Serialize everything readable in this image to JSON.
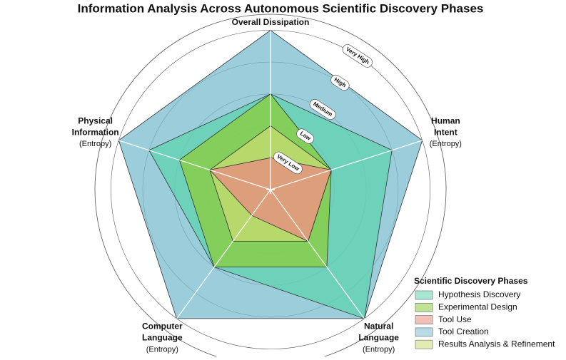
{
  "chart_data": {
    "type": "radar",
    "title": "Information Analysis Across Autonomous Scientific Discovery Phases",
    "categories": [
      "Overall Dissipation",
      "Human Intent",
      "Natural Language",
      "Computer Language",
      "Physical Information"
    ],
    "category_subtitles": [
      null,
      "(Entropy)",
      "(Entropy)",
      "(Entropy)",
      "(Entropy)"
    ],
    "ylim": [
      0,
      5.5
    ],
    "yticks": [
      {
        "value": 1,
        "label": "Very Low"
      },
      {
        "value": 2,
        "label": "Low"
      },
      {
        "value": 3,
        "label": "Medium"
      },
      {
        "value": 4,
        "label": "High"
      },
      {
        "value": 5,
        "label": "Very High"
      }
    ],
    "grid": true,
    "legend_title": "Scientific Discovery Phases",
    "legend_position": "lower right",
    "series": [
      {
        "name": "Hypothesis Discovery",
        "color": "#5fd3b0",
        "values": [
          3,
          4,
          5,
          3,
          4
        ]
      },
      {
        "name": "Experimental Design",
        "color": "#8ccc3c",
        "values": [
          3,
          2,
          3,
          3,
          3
        ]
      },
      {
        "name": "Tool Use",
        "color": "#e88a80",
        "values": [
          1,
          2,
          2,
          1,
          2
        ]
      },
      {
        "name": "Tool Creation",
        "color": "#7bbccf",
        "values": [
          5,
          5,
          5,
          5,
          5
        ]
      },
      {
        "name": "Results Analysis & Refinement",
        "color": "#c8dc70",
        "values": [
          2,
          2,
          2,
          2,
          2
        ]
      }
    ],
    "draw_order": [
      3,
      0,
      1,
      4,
      2
    ]
  }
}
